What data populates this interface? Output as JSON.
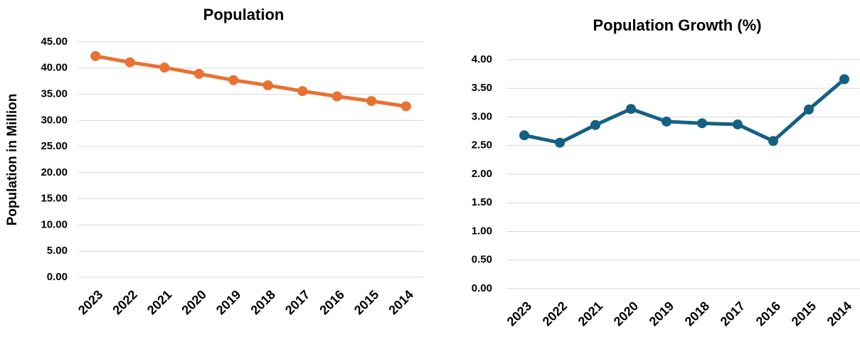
{
  "chart_data": [
    {
      "type": "line",
      "title": "Population",
      "y_label": "Population in Million",
      "categories": [
        "2023",
        "2022",
        "2021",
        "2020",
        "2019",
        "2018",
        "2017",
        "2016",
        "2015",
        "2014"
      ],
      "values": [
        42.3,
        41.1,
        40.1,
        38.9,
        37.7,
        36.7,
        35.6,
        34.6,
        33.7,
        32.7
      ],
      "color": "#e97132",
      "ylim": [
        0,
        45
      ],
      "yticks": [
        {
          "value": 0,
          "label": "0.00"
        },
        {
          "value": 5,
          "label": "5.00"
        },
        {
          "value": 10,
          "label": "10.00"
        },
        {
          "value": 15,
          "label": "15.00"
        },
        {
          "value": 20,
          "label": "20.00"
        },
        {
          "value": 25,
          "label": "25.00"
        },
        {
          "value": 30,
          "label": "30.00"
        },
        {
          "value": 35,
          "label": "35.00"
        },
        {
          "value": 40,
          "label": "40.00"
        },
        {
          "value": 45,
          "label": "45.00"
        }
      ],
      "grid": true
    },
    {
      "type": "line",
      "title": "Population Growth (%)",
      "categories": [
        "2023",
        "2022",
        "2021",
        "2020",
        "2019",
        "2018",
        "2017",
        "2016",
        "2015",
        "2014"
      ],
      "values": [
        2.68,
        2.55,
        2.86,
        3.14,
        2.92,
        2.89,
        2.87,
        2.58,
        3.13,
        3.66
      ],
      "color": "#156082",
      "ylim": [
        0,
        4
      ],
      "yticks": [
        {
          "value": 0,
          "label": "0.00"
        },
        {
          "value": 0.5,
          "label": "0.50"
        },
        {
          "value": 1,
          "label": "1.00"
        },
        {
          "value": 1.5,
          "label": "1.50"
        },
        {
          "value": 2,
          "label": "2.00"
        },
        {
          "value": 2.5,
          "label": "2.50"
        },
        {
          "value": 3,
          "label": "3.00"
        },
        {
          "value": 3.5,
          "label": "3.50"
        },
        {
          "value": 4,
          "label": "4.00"
        }
      ],
      "grid": true
    }
  ]
}
